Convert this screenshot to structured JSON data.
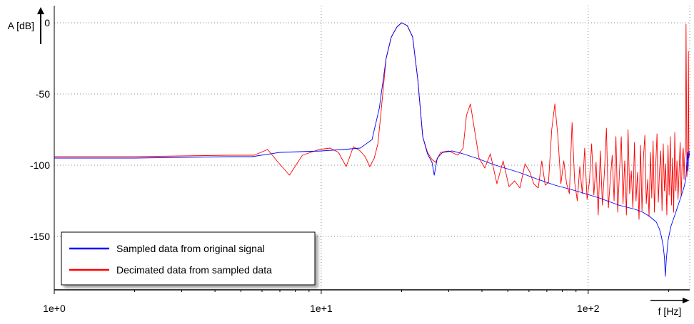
{
  "chart_data": {
    "type": "line",
    "title": "",
    "xlabel": "f [Hz]",
    "ylabel": "A [dB]",
    "xscale": "log",
    "xlim": [
      1,
      240
    ],
    "ylim": [
      -187,
      12
    ],
    "x_ticks": [
      1,
      10,
      100
    ],
    "x_tick_labels": [
      "1e+0",
      "1e+1",
      "1e+2"
    ],
    "y_ticks": [
      0,
      -50,
      -100,
      -150
    ],
    "y_tick_labels": [
      "0",
      "-50",
      "-100",
      "-150"
    ],
    "grid": true,
    "legend_position": "bottom-left",
    "colors": {
      "blue": "#0000ff",
      "red": "#ff0000",
      "grid": "#888888"
    },
    "series": [
      {
        "name": "Sampled data from original signal",
        "color": "#0000ff",
        "points": [
          [
            1.0,
            -95
          ],
          [
            2.0,
            -95
          ],
          [
            3.0,
            -94.5
          ],
          [
            4.5,
            -94
          ],
          [
            5.5,
            -94
          ],
          [
            7.0,
            -91
          ],
          [
            10.0,
            -90
          ],
          [
            12.0,
            -89
          ],
          [
            14.0,
            -88
          ],
          [
            15.5,
            -82
          ],
          [
            16.5,
            -60
          ],
          [
            17.5,
            -25
          ],
          [
            18.3,
            -10
          ],
          [
            19.2,
            -3
          ],
          [
            20.0,
            0
          ],
          [
            21.0,
            -2
          ],
          [
            22.0,
            -10
          ],
          [
            23.0,
            -40
          ],
          [
            24.0,
            -80
          ],
          [
            25.0,
            -92
          ],
          [
            26.0,
            -98
          ],
          [
            26.5,
            -107
          ],
          [
            27.2,
            -95
          ],
          [
            28.5,
            -91
          ],
          [
            31.0,
            -90
          ],
          [
            34.0,
            -92
          ],
          [
            38.0,
            -95
          ],
          [
            45.0,
            -100
          ],
          [
            55.0,
            -105
          ],
          [
            65.0,
            -110
          ],
          [
            75.0,
            -114
          ],
          [
            90.0,
            -118
          ],
          [
            110.0,
            -123
          ],
          [
            130.0,
            -128
          ],
          [
            150.0,
            -131
          ],
          [
            160.0,
            -133
          ],
          [
            170.0,
            -136
          ],
          [
            180.0,
            -140
          ],
          [
            185.0,
            -145
          ],
          [
            188.0,
            -150
          ],
          [
            191.0,
            -157
          ],
          [
            193.0,
            -165
          ],
          [
            194.5,
            -178
          ],
          [
            196.0,
            -167
          ],
          [
            199.0,
            -153
          ],
          [
            204.0,
            -143
          ],
          [
            212.0,
            -134
          ],
          [
            220.0,
            -125
          ],
          [
            228.0,
            -116
          ],
          [
            232.0,
            -110
          ],
          [
            234.5,
            -95
          ],
          [
            235.5,
            -91
          ],
          [
            236.5,
            -104
          ],
          [
            237.5,
            -93
          ],
          [
            238.5,
            -90
          ],
          [
            239.5,
            -93
          ]
        ]
      },
      {
        "name": "Decimated data from sampled data",
        "color": "#ff0000",
        "points": [
          [
            1.0,
            -94
          ],
          [
            2.0,
            -94
          ],
          [
            3.0,
            -93.5
          ],
          [
            4.5,
            -93
          ],
          [
            5.6,
            -93
          ],
          [
            6.3,
            -89
          ],
          [
            6.9,
            -98
          ],
          [
            7.6,
            -107
          ],
          [
            8.5,
            -93
          ],
          [
            9.8,
            -89
          ],
          [
            10.8,
            -88
          ],
          [
            11.6,
            -91
          ],
          [
            12.4,
            -101
          ],
          [
            13.2,
            -87
          ],
          [
            14.0,
            -90
          ],
          [
            14.6,
            -94
          ],
          [
            15.2,
            -101
          ],
          [
            15.8,
            -95
          ],
          [
            16.3,
            -85
          ],
          [
            16.8,
            -60
          ],
          [
            17.5,
            -25
          ],
          [
            18.3,
            -10
          ],
          [
            19.2,
            -3
          ],
          [
            20.0,
            0
          ],
          [
            21.0,
            -2
          ],
          [
            22.0,
            -10
          ],
          [
            23.0,
            -40
          ],
          [
            24.0,
            -80
          ],
          [
            25.0,
            -91
          ],
          [
            26.0,
            -96
          ],
          [
            26.8,
            -98
          ],
          [
            28.0,
            -91
          ],
          [
            30.0,
            -90
          ],
          [
            32.5,
            -93
          ],
          [
            34.0,
            -88
          ],
          [
            35.0,
            -65
          ],
          [
            36.2,
            -57
          ],
          [
            37.5,
            -75
          ],
          [
            39.0,
            -95
          ],
          [
            41.0,
            -102
          ],
          [
            43.0,
            -92
          ],
          [
            45.5,
            -113
          ],
          [
            48.0,
            -97
          ],
          [
            50.5,
            -115
          ],
          [
            53.0,
            -111
          ],
          [
            55.5,
            -116
          ],
          [
            58.0,
            -99
          ],
          [
            60.5,
            -105
          ],
          [
            62.5,
            -113
          ],
          [
            65.0,
            -116
          ],
          [
            67.0,
            -97
          ],
          [
            69.0,
            -114
          ],
          [
            71.0,
            -112
          ],
          [
            73.0,
            -75
          ],
          [
            75.0,
            -57
          ],
          [
            77.0,
            -80
          ],
          [
            79.0,
            -113
          ],
          [
            81.0,
            -97
          ],
          [
            83.0,
            -113
          ],
          [
            85.0,
            -120
          ],
          [
            87.0,
            -70
          ],
          [
            89.0,
            -112
          ],
          [
            91.0,
            -125
          ],
          [
            93.0,
            -101
          ],
          [
            95.0,
            -120
          ],
          [
            97.0,
            -88
          ],
          [
            99.0,
            -124
          ],
          [
            101.0,
            -112
          ],
          [
            103.0,
            -85
          ],
          [
            105.0,
            -121
          ],
          [
            107.0,
            -98
          ],
          [
            109.0,
            -135
          ],
          [
            111.0,
            -90
          ],
          [
            113.0,
            -128
          ],
          [
            115.0,
            -105
          ],
          [
            117.0,
            -74
          ],
          [
            119.0,
            -130
          ],
          [
            121.0,
            -110
          ],
          [
            123.0,
            -93
          ],
          [
            125.0,
            -125
          ],
          [
            127.0,
            -80
          ],
          [
            129.0,
            -133
          ],
          [
            131.0,
            -104
          ],
          [
            133.0,
            -80
          ],
          [
            135.0,
            -127
          ],
          [
            137.0,
            -97
          ],
          [
            139.0,
            -135
          ],
          [
            141.0,
            -75
          ],
          [
            143.0,
            -120
          ],
          [
            145.0,
            -104
          ],
          [
            147.0,
            -130
          ],
          [
            149.0,
            -84
          ],
          [
            151.0,
            -125
          ],
          [
            153.0,
            -105
          ],
          [
            155.0,
            -138
          ],
          [
            157.0,
            -86
          ],
          [
            159.0,
            -132
          ],
          [
            161.0,
            -95
          ],
          [
            163.0,
            -79
          ],
          [
            165.0,
            -127
          ],
          [
            167.0,
            -110
          ],
          [
            169.0,
            -136
          ],
          [
            171.0,
            -91
          ],
          [
            173.0,
            -123
          ],
          [
            175.0,
            -83
          ],
          [
            177.0,
            -133
          ],
          [
            179.0,
            -100
          ],
          [
            181.0,
            -78
          ],
          [
            183.0,
            -126
          ],
          [
            185.0,
            -104
          ],
          [
            187.0,
            -90
          ],
          [
            189.0,
            -132
          ],
          [
            191.0,
            -85
          ],
          [
            193.0,
            -118
          ],
          [
            195.0,
            -99
          ],
          [
            197.0,
            -135
          ],
          [
            199.0,
            -86
          ],
          [
            201.0,
            -121
          ],
          [
            203.0,
            -80
          ],
          [
            205.0,
            -128
          ],
          [
            207.0,
            -95
          ],
          [
            209.0,
            -133
          ],
          [
            211.0,
            -77
          ],
          [
            213.0,
            -118
          ],
          [
            215.0,
            -97
          ],
          [
            217.0,
            -124
          ],
          [
            219.0,
            -104
          ],
          [
            221.0,
            -84
          ],
          [
            223.0,
            -122
          ],
          [
            225.0,
            -96
          ],
          [
            227.0,
            -88
          ],
          [
            228.5,
            -110
          ],
          [
            229.5,
            -96
          ],
          [
            230.5,
            -92
          ],
          [
            231.5,
            -90
          ],
          [
            232.5,
            -1
          ],
          [
            233.3,
            -48
          ],
          [
            234.3,
            -108
          ],
          [
            235.3,
            -98
          ],
          [
            236.3,
            -104
          ],
          [
            237.3,
            -20
          ],
          [
            238.3,
            -95
          ],
          [
            239.5,
            -92
          ]
        ]
      }
    ]
  }
}
